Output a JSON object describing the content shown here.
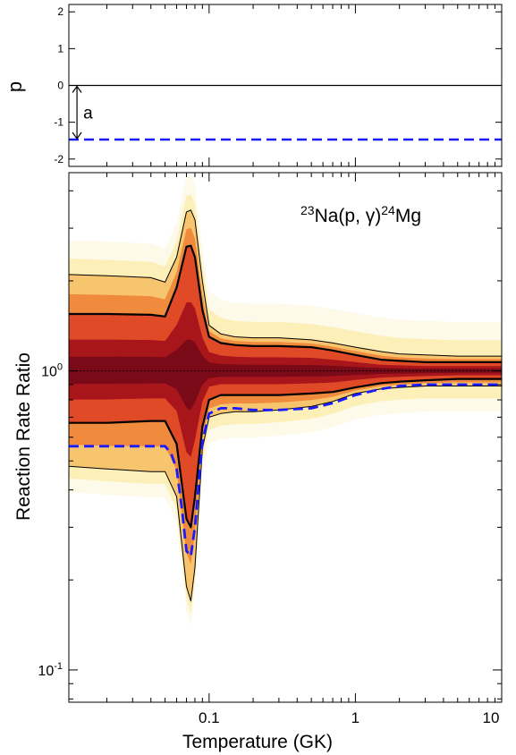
{
  "chart_data": [
    {
      "type": "line",
      "ylabel": "p",
      "ylim": [
        -2.2,
        2.2
      ],
      "xscale": "log",
      "xlim": [
        0.011,
        10
      ],
      "yticks": [
        2,
        1,
        0,
        -1,
        -2
      ],
      "ytick_labels": [
        "2",
        "1",
        "0",
        "-1",
        "-2"
      ],
      "reference_line": {
        "y": 0,
        "color": "#000000"
      },
      "series": [
        {
          "style": "dashed",
          "color": "#1a1aff",
          "x": [
            0.011,
            10
          ],
          "y": [
            -1.47,
            -1.47
          ]
        }
      ],
      "annotation": {
        "text": "a",
        "from_y": 0,
        "to_y": -1.47,
        "x": 0.0125
      }
    },
    {
      "type": "area",
      "title": "",
      "label_main": "Na(p, γ)",
      "label_sup1": "23",
      "label_sup2": "24",
      "label_tail": "Mg",
      "xlabel": "Temperature (GK)",
      "ylabel": "Reaction Rate Ratio",
      "xscale": "log",
      "yscale": "log",
      "xlim": [
        0.011,
        10
      ],
      "ylim": [
        0.078,
        4.6
      ],
      "xtick_labels": [
        {
          "value": 0.1,
          "label": "0.1"
        },
        {
          "value": 1,
          "label": "1"
        },
        {
          "value": 10,
          "label": "10"
        }
      ],
      "ytick_labels": [
        {
          "value": 1,
          "base": "10",
          "exp": "0"
        },
        {
          "value": 0.1,
          "base": "10",
          "exp": "-1"
        }
      ],
      "x": [
        0.011,
        0.02,
        0.04,
        0.05,
        0.06,
        0.07,
        0.075,
        0.08,
        0.09,
        0.1,
        0.12,
        0.15,
        0.2,
        0.3,
        0.5,
        0.7,
        1.0,
        1.5,
        2.0,
        3.0,
        5.0,
        10.0
      ],
      "band_outer_upper": [
        2.1,
        2.08,
        2.05,
        1.98,
        2.4,
        3.4,
        3.45,
        3.2,
        2.0,
        1.42,
        1.33,
        1.3,
        1.29,
        1.29,
        1.27,
        1.24,
        1.2,
        1.16,
        1.14,
        1.13,
        1.12,
        1.12
      ],
      "band_inner_upper": [
        1.55,
        1.55,
        1.54,
        1.52,
        1.9,
        2.6,
        2.62,
        2.4,
        1.6,
        1.3,
        1.24,
        1.22,
        1.21,
        1.21,
        1.2,
        1.17,
        1.13,
        1.09,
        1.08,
        1.07,
        1.07,
        1.07
      ],
      "band_inner_lower": [
        0.67,
        0.67,
        0.68,
        0.68,
        0.57,
        0.32,
        0.3,
        0.38,
        0.65,
        0.8,
        0.83,
        0.83,
        0.83,
        0.83,
        0.84,
        0.85,
        0.88,
        0.91,
        0.92,
        0.93,
        0.94,
        0.94
      ],
      "band_outer_lower": [
        0.48,
        0.47,
        0.46,
        0.46,
        0.38,
        0.19,
        0.17,
        0.22,
        0.55,
        0.7,
        0.72,
        0.73,
        0.73,
        0.74,
        0.76,
        0.79,
        0.84,
        0.87,
        0.88,
        0.89,
        0.89,
        0.89
      ],
      "series": [
        {
          "style": "dashed",
          "color": "#1a1aff",
          "x": [
            0.011,
            0.04,
            0.05,
            0.055,
            0.06,
            0.065,
            0.07,
            0.075,
            0.08,
            0.09,
            0.1,
            0.12,
            0.15,
            0.2,
            0.3,
            0.5,
            0.7,
            1.0,
            1.5,
            2.0,
            3.0,
            5.0,
            10.0
          ],
          "y": [
            0.56,
            0.56,
            0.56,
            0.53,
            0.47,
            0.35,
            0.25,
            0.24,
            0.3,
            0.58,
            0.72,
            0.75,
            0.75,
            0.74,
            0.74,
            0.75,
            0.78,
            0.83,
            0.87,
            0.89,
            0.9,
            0.9,
            0.9
          ]
        }
      ],
      "reference_line": {
        "y": 1,
        "style": "dotted",
        "color": "#000000"
      },
      "colors": {
        "band_core": "#7a0a18",
        "band_mid": "#e14a26",
        "band_edge": "#fcefb8",
        "dashed": "#1a1aff"
      }
    }
  ]
}
